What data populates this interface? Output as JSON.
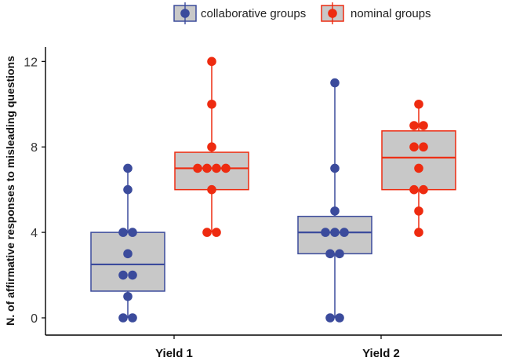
{
  "chart_data": {
    "type": "box",
    "title": "",
    "xlabel": "",
    "ylabel": "N. of affirmative responses to misleading questions",
    "categories": [
      "Yield 1",
      "Yield 2"
    ],
    "ylim": [
      0,
      12.6
    ],
    "yticks": [
      0,
      4,
      8,
      12
    ],
    "grid": false,
    "legend_position": "top",
    "box_fill": "#c8c8c8",
    "series": [
      {
        "name": "collaborative groups",
        "color": "#3b4b9c",
        "boxes": [
          {
            "q1": 1.25,
            "median": 2.5,
            "q3": 4,
            "whisker_low": 0,
            "whisker_high": 7,
            "points": [
              0,
              0,
              1,
              2,
              2,
              3,
              4,
              4,
              6,
              7
            ]
          },
          {
            "q1": 3,
            "median": 4,
            "q3": 4.75,
            "whisker_low": 0,
            "whisker_high": 11,
            "points": [
              0,
              0,
              3,
              3,
              4,
              4,
              4,
              5,
              7,
              11
            ]
          }
        ]
      },
      {
        "name": "nominal groups",
        "color": "#ee2b10",
        "boxes": [
          {
            "q1": 6,
            "median": 7,
            "q3": 7.75,
            "whisker_low": 4,
            "whisker_high": 12,
            "points": [
              4,
              4,
              6,
              7,
              7,
              7,
              7,
              8,
              10,
              12
            ]
          },
          {
            "q1": 6,
            "median": 7.5,
            "q3": 8.75,
            "whisker_low": 4,
            "whisker_high": 10,
            "points": [
              4,
              5,
              6,
              6,
              7,
              8,
              8,
              9,
              9,
              10
            ]
          }
        ]
      }
    ]
  }
}
